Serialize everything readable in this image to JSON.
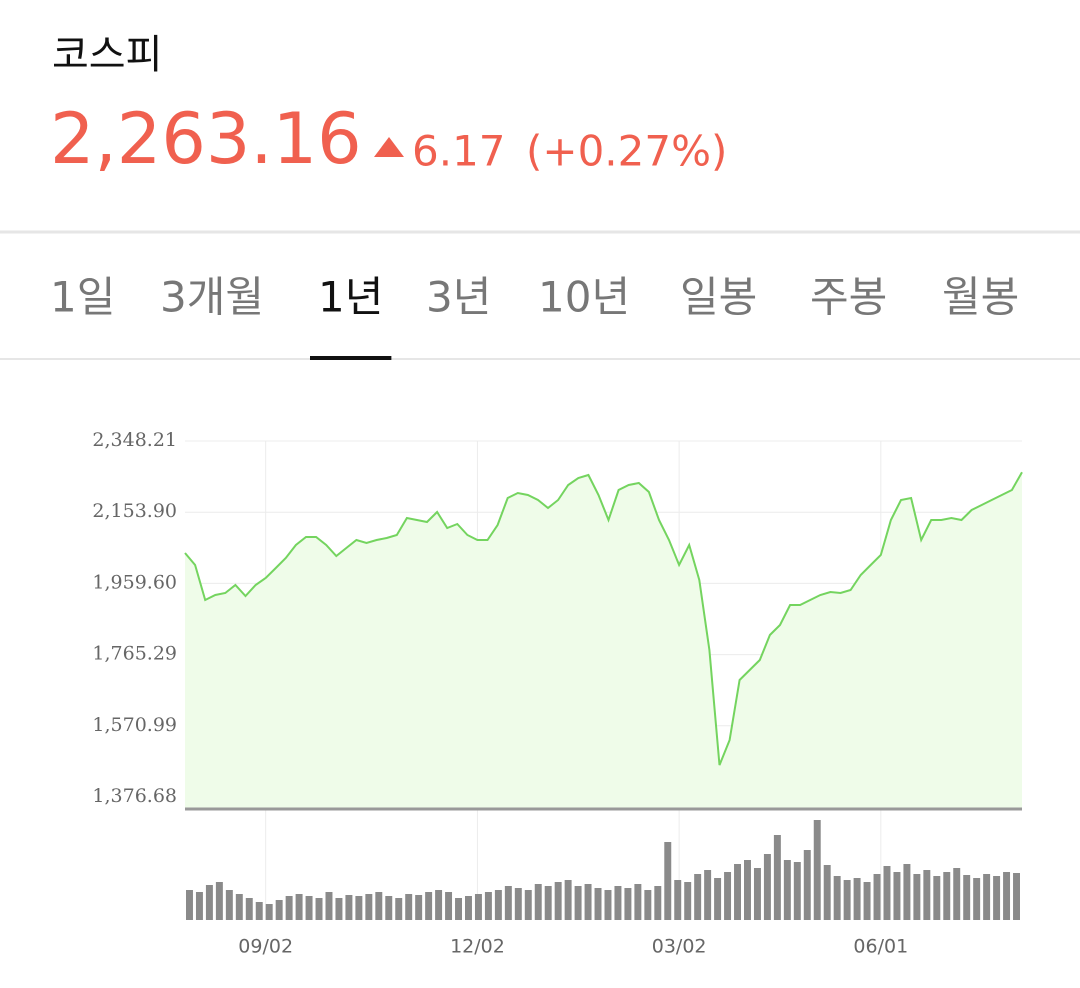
{
  "header": {
    "title": "코스피",
    "price": "2,263.16",
    "change": "6.17",
    "change_rate": "(+0.27%)"
  },
  "tabs": {
    "items": [
      "1일",
      "3개월",
      "1년",
      "3년",
      "10년",
      "일봉",
      "주봉",
      "월봉"
    ],
    "selected": 2
  },
  "chart_data": [
    {
      "type": "line",
      "color": "#74d45f",
      "fill": "#effce9",
      "grid": true,
      "categories": [
        null,
        null,
        null,
        null,
        null,
        null,
        null,
        null,
        "09/02",
        null,
        null,
        null,
        null,
        null,
        null,
        null,
        null,
        null,
        null,
        null,
        null,
        null,
        null,
        null,
        null,
        null,
        null,
        null,
        null,
        "12/02",
        null,
        null,
        null,
        null,
        null,
        null,
        null,
        null,
        null,
        null,
        null,
        null,
        null,
        null,
        null,
        null,
        null,
        null,
        null,
        "03/02",
        null,
        null,
        null,
        null,
        null,
        null,
        null,
        null,
        null,
        null,
        null,
        null,
        null,
        null,
        null,
        null,
        null,
        null,
        null,
        "06/01",
        null,
        null,
        null,
        null,
        null,
        null,
        null,
        null,
        null,
        null,
        null,
        null,
        null,
        null
      ],
      "values": [
        2042.5,
        2009.8,
        1914.2,
        1927.9,
        1933.3,
        1955.2,
        1925.2,
        1955.2,
        1974.3,
        2001.6,
        2028.9,
        2064.4,
        2086.2,
        2086.2,
        2064.4,
        2034.3,
        2056.2,
        2078.0,
        2069.8,
        2078.0,
        2083.5,
        2091.6,
        2138.0,
        2132.6,
        2127.1,
        2154.4,
        2110.7,
        2121.7,
        2091.6,
        2078.0,
        2078.0,
        2118.9,
        2192.6,
        2206.3,
        2200.8,
        2187.2,
        2165.3,
        2187.2,
        2228.1,
        2247.2,
        2255.4,
        2200.8,
        2132.6,
        2214.5,
        2228.1,
        2233.6,
        2209.0,
        2132.6,
        2078.0,
        2009.8,
        2064.4,
        1968.8,
        1777.8,
        1463.9,
        1532.1,
        1695.9,
        1723.2,
        1750.5,
        1818.7,
        1846.0,
        1900.6,
        1900.6,
        1914.2,
        1927.9,
        1936.1,
        1933.3,
        1941.5,
        1982.5,
        2009.8,
        2037.1,
        2132.6,
        2187.2,
        2192.6,
        2078.0,
        2132.6,
        2132.6,
        2138.0,
        2132.6,
        2159.9,
        2173.5,
        2187.2,
        2200.8,
        2214.5,
        2263.16
      ],
      "ylim": [
        1346.7,
        2348.21
      ],
      "yticks": [
        {
          "value": 1376.68,
          "label": "1,376.68"
        },
        {
          "value": 1570.99,
          "label": "1,570.99"
        },
        {
          "value": 1765.29,
          "label": "1,765.29"
        },
        {
          "value": 1959.6,
          "label": "1,959.60"
        },
        {
          "value": 2153.9,
          "label": "2,153.90"
        },
        {
          "value": 2348.21,
          "label": "2,348.21"
        }
      ]
    },
    {
      "type": "bar",
      "color": "#8a8a8a",
      "ylim": [
        0,
        100
      ],
      "values": [
        30,
        28,
        35,
        38,
        30,
        26,
        22,
        18,
        16,
        20,
        24,
        26,
        24,
        22,
        28,
        22,
        25,
        24,
        26,
        28,
        24,
        22,
        26,
        25,
        28,
        30,
        28,
        22,
        24,
        26,
        28,
        30,
        34,
        32,
        30,
        36,
        34,
        38,
        40,
        34,
        36,
        32,
        30,
        34,
        32,
        36,
        30,
        34,
        78,
        40,
        38,
        46,
        50,
        42,
        48,
        56,
        60,
        52,
        66,
        85,
        60,
        58,
        70,
        100,
        55,
        44,
        40,
        42,
        38,
        46,
        54,
        48,
        56,
        46,
        50,
        44,
        48,
        52,
        45,
        42,
        46,
        44,
        48,
        47
      ]
    }
  ]
}
